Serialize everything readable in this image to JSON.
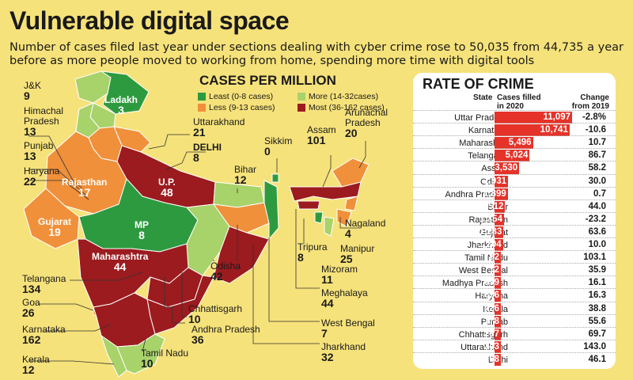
{
  "title": "Vulnerable digital space",
  "subtitle": "Number of cases filed last year under sections dealing with cyber crime rose to 50,035 from 44,735 a year before as more people moved to working from home, spending more time with digital tools",
  "colors": {
    "least": "#2e9a3f",
    "less": "#a8d26a",
    "more": "#f0903a",
    "most": "#9b1b1f",
    "bar": "#e5332a",
    "background": "#f6e27a"
  },
  "chart_data": [
    {
      "type": "map",
      "title": "CASES PER MILLION",
      "legend": [
        {
          "label": "Least (0-8 cases)",
          "color": "#2e9a3f"
        },
        {
          "label": "Less (9-13 cases)",
          "color": "#a8d26a"
        },
        {
          "label": "More (14-32cases)",
          "color": "#f0903a"
        },
        {
          "label": "Most (36-162 cases)",
          "color": "#9b1b1f"
        }
      ],
      "regions": [
        {
          "name": "J&K",
          "value": 9
        },
        {
          "name": "Ladakh",
          "value": 3
        },
        {
          "name": "Himachal Pradesh",
          "value": 13
        },
        {
          "name": "Punjab",
          "value": 13
        },
        {
          "name": "Haryana",
          "value": 22
        },
        {
          "name": "Uttarakhand",
          "value": 21
        },
        {
          "name": "DELHI",
          "value": 8
        },
        {
          "name": "Rajasthan",
          "value": 17
        },
        {
          "name": "U.P.",
          "value": 48
        },
        {
          "name": "Sikkim",
          "value": 0
        },
        {
          "name": "Bihar",
          "value": 12
        },
        {
          "name": "Assam",
          "value": 101
        },
        {
          "name": "Arunachal Pradesh",
          "value": 20
        },
        {
          "name": "Gujarat",
          "value": 19
        },
        {
          "name": "MP",
          "value": 8
        },
        {
          "name": "Nagaland",
          "value": 4
        },
        {
          "name": "Tripura",
          "value": 8
        },
        {
          "name": "Manipur",
          "value": 25
        },
        {
          "name": "Mizoram",
          "value": 11
        },
        {
          "name": "Maharashtra",
          "value": 44
        },
        {
          "name": "Meghalaya",
          "value": 44
        },
        {
          "name": "Telangana",
          "value": 134
        },
        {
          "name": "Odisha",
          "value": 42
        },
        {
          "name": "Goa",
          "value": 26
        },
        {
          "name": "Chhattisgarh",
          "value": 10
        },
        {
          "name": "Karnataka",
          "value": 162
        },
        {
          "name": "Andhra Pradesh",
          "value": 36
        },
        {
          "name": "West Bengal",
          "value": 7
        },
        {
          "name": "Kerala",
          "value": 12
        },
        {
          "name": "Tamil Nadu",
          "value": 10
        },
        {
          "name": "Jharkhand",
          "value": 32
        }
      ]
    },
    {
      "type": "bar",
      "title": "RATE OF CRIME",
      "headers": {
        "state": "State",
        "cases": "Cases filled in 2020",
        "change": "Change from 2019"
      },
      "categories": [
        "Uttar Pradesh",
        "Karnataka",
        "Maharashtra",
        "Telangana",
        "Assam",
        "Odisha",
        "Andhra Pradesh",
        "Bihar",
        "Rajasthan",
        "Gujarat",
        "Jharkhand",
        "Tamil Nadu",
        "West Bengal",
        "Madhya Pradesh",
        "Haryana",
        "Kerala",
        "Punjab",
        "Chhattisgarh",
        "Uttarakhand",
        "Delhi"
      ],
      "values": [
        11097,
        10741,
        5496,
        5024,
        3530,
        1931,
        1899,
        1512,
        1354,
        1283,
        1204,
        782,
        712,
        699,
        656,
        426,
        378,
        297,
        243,
        168
      ],
      "value_labels": [
        "11,097",
        "10,741",
        "5,496",
        "5,024",
        "3,530",
        "1,931",
        "1,899",
        "1,512",
        "1,354",
        "1,283",
        "1,204",
        "782",
        "712",
        "699",
        "656",
        "426",
        "378",
        "297",
        "243",
        "168"
      ],
      "change": [
        "-2.8%",
        "-10.6",
        "10.7",
        "86.7",
        "58.2",
        "30.0",
        "0.7",
        "44.0",
        "-23.2",
        "63.6",
        "10.0",
        "103.1",
        "35.9",
        "16.1",
        "16.3",
        "38.8",
        "55.6",
        "69.7",
        "143.0",
        "46.1"
      ]
    }
  ]
}
